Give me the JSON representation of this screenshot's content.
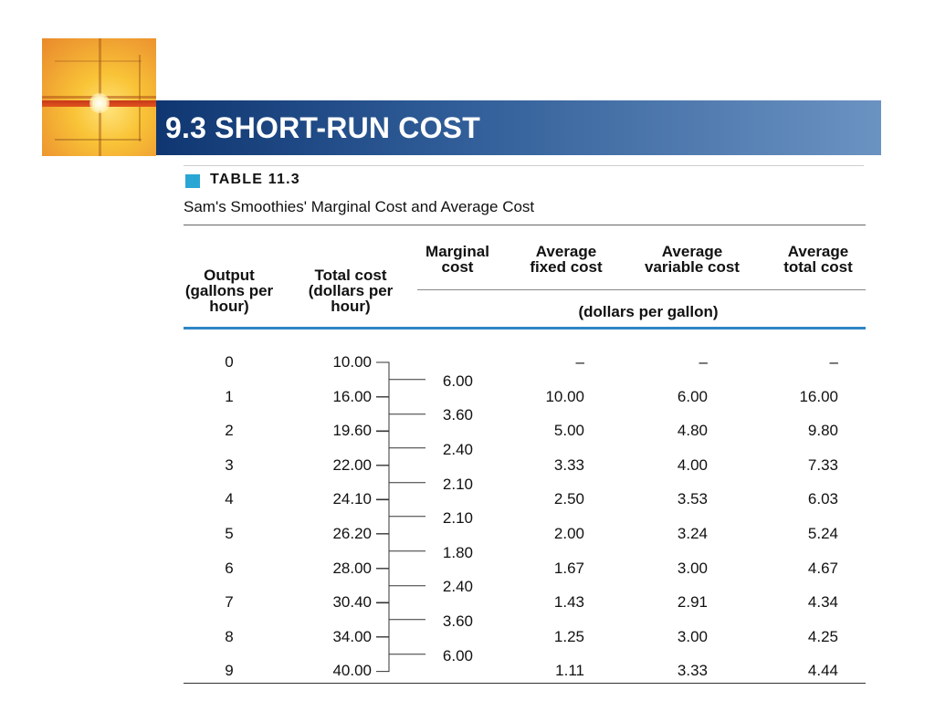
{
  "slide": {
    "title": "9.3 SHORT-RUN COST"
  },
  "table": {
    "label": "TABLE 11.3",
    "caption": "Sam's Smoothies' Marginal Cost and Average Cost",
    "headers": {
      "output": "Output (gallons per hour)",
      "total_cost": "Total cost (dollars per hour)",
      "marginal_cost": "Marginal cost",
      "afc": "Average fixed cost",
      "avc": "Average variable cost",
      "atc": "Average total cost",
      "units": "(dollars per gallon)"
    },
    "rows": [
      {
        "output": "0",
        "total_cost": "10.00",
        "afc": "–",
        "avc": "–",
        "atc": "–"
      },
      {
        "output": "1",
        "total_cost": "16.00",
        "afc": "10.00",
        "avc": "6.00",
        "atc": "16.00"
      },
      {
        "output": "2",
        "total_cost": "19.60",
        "afc": "5.00",
        "avc": "4.80",
        "atc": "9.80"
      },
      {
        "output": "3",
        "total_cost": "22.00",
        "afc": "3.33",
        "avc": "4.00",
        "atc": "7.33"
      },
      {
        "output": "4",
        "total_cost": "24.10",
        "afc": "2.50",
        "avc": "3.53",
        "atc": "6.03"
      },
      {
        "output": "5",
        "total_cost": "26.20",
        "afc": "2.00",
        "avc": "3.24",
        "atc": "5.24"
      },
      {
        "output": "6",
        "total_cost": "28.00",
        "afc": "1.67",
        "avc": "3.00",
        "atc": "4.67"
      },
      {
        "output": "7",
        "total_cost": "30.40",
        "afc": "1.43",
        "avc": "2.91",
        "atc": "4.34"
      },
      {
        "output": "8",
        "total_cost": "34.00",
        "afc": "1.25",
        "avc": "3.00",
        "atc": "4.25"
      },
      {
        "output": "9",
        "total_cost": "40.00",
        "afc": "1.11",
        "avc": "3.33",
        "atc": "4.44"
      }
    ],
    "marginal_costs": [
      "6.00",
      "3.60",
      "2.40",
      "2.10",
      "2.10",
      "1.80",
      "2.40",
      "3.60",
      "6.00"
    ]
  },
  "colors": {
    "title_bar_dark": "#0f3671",
    "title_bar_light": "#6b93c2",
    "table_tag": "#29a6d4",
    "header_rule": "#2f86c5"
  }
}
